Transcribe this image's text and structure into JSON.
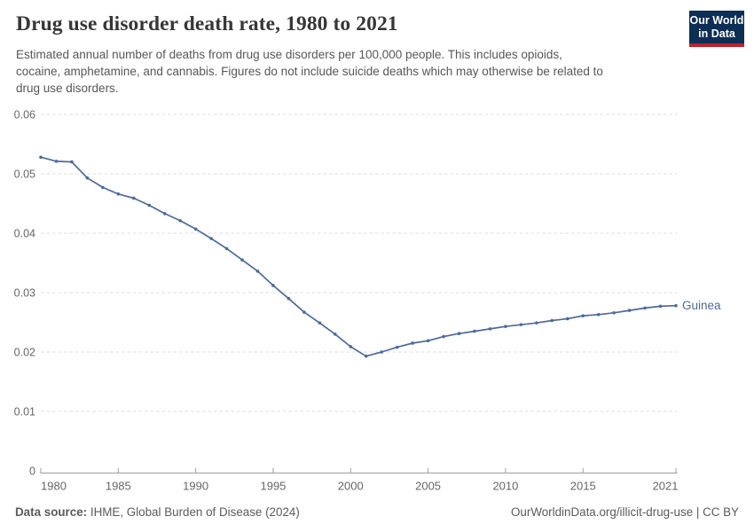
{
  "header": {
    "title": "Drug use disorder death rate, 1980 to 2021",
    "subtitle_lines": [
      "Estimated annual number of deaths from drug use disorders per 100,000 people. This includes opioids,",
      "cocaine, amphetamine, and cannabis. Figures do not include suicide deaths which may otherwise be related to",
      "drug use disorders."
    ],
    "logo": {
      "line1": "Our World",
      "line2": "in Data"
    }
  },
  "chart_data": {
    "type": "line",
    "title": "Drug use disorder death rate, 1980 to 2021",
    "xlabel": "",
    "ylabel": "",
    "xlim": [
      1980,
      2021
    ],
    "ylim": [
      0,
      0.06
    ],
    "x_ticks": [
      1980,
      1985,
      1990,
      1995,
      2000,
      2005,
      2010,
      2015,
      2021
    ],
    "y_ticks": [
      0,
      0.01,
      0.02,
      0.03,
      0.04,
      0.05,
      0.06
    ],
    "grid": "horizontal-dashed",
    "legend_position": "end-of-line",
    "x": [
      1980,
      1981,
      1982,
      1983,
      1984,
      1985,
      1986,
      1987,
      1988,
      1989,
      1990,
      1991,
      1992,
      1993,
      1994,
      1995,
      1996,
      1997,
      1998,
      1999,
      2000,
      2001,
      2002,
      2003,
      2004,
      2005,
      2006,
      2007,
      2008,
      2009,
      2010,
      2011,
      2012,
      2013,
      2014,
      2015,
      2016,
      2017,
      2018,
      2019,
      2020,
      2021
    ],
    "series": [
      {
        "name": "Guinea",
        "color": "#4c6a9c",
        "values": [
          0.0528,
          0.0521,
          0.052,
          0.0493,
          0.0477,
          0.0466,
          0.0459,
          0.0447,
          0.0433,
          0.0421,
          0.0407,
          0.0391,
          0.0374,
          0.0355,
          0.0336,
          0.0312,
          0.029,
          0.0267,
          0.0249,
          0.023,
          0.0209,
          0.0193,
          0.02,
          0.0208,
          0.0215,
          0.0219,
          0.0226,
          0.0231,
          0.0235,
          0.0239,
          0.0243,
          0.0246,
          0.0249,
          0.0253,
          0.0256,
          0.0261,
          0.0263,
          0.0266,
          0.027,
          0.0274,
          0.0277,
          0.0278
        ]
      }
    ]
  },
  "footer": {
    "source_label": "Data source:",
    "source_text": "IHME, Global Burden of Disease (2024)",
    "right_text": "OurWorldinData.org/illicit-drug-use | CC BY"
  },
  "colors": {
    "series_line": "#4c6a9c",
    "logo_bg": "#0d2e55",
    "logo_accent": "#c0222c",
    "title_text": "#373737",
    "subtitle_text": "#575757",
    "tick_text": "#666666",
    "gridline": "#dddddd",
    "axis_line": "#9e9e9e",
    "footer_text": "#5b5b5b"
  }
}
